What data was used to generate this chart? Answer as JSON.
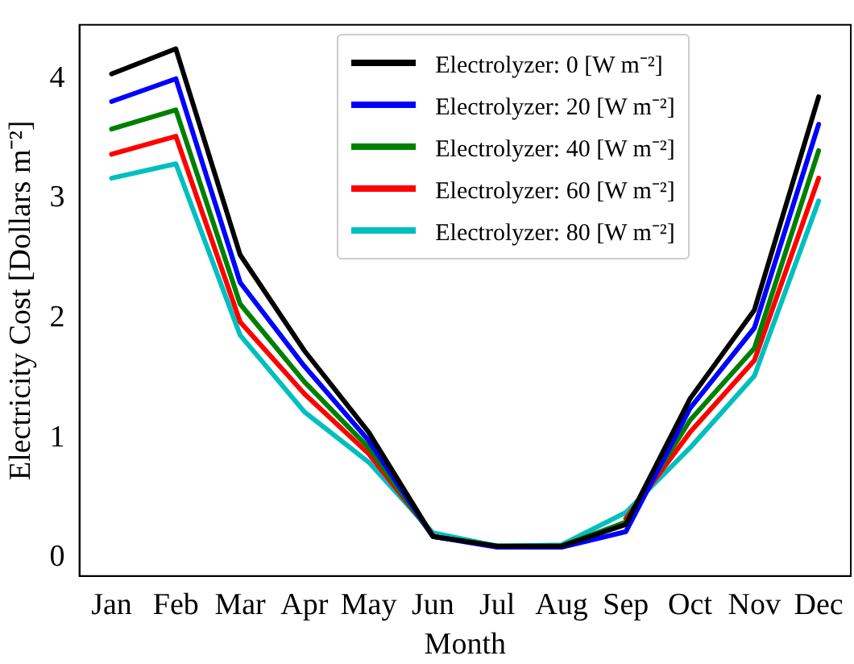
{
  "chart_data": {
    "type": "line",
    "xlabel": "Month",
    "ylabel": "Electricity Cost [Dollars m⁻²]",
    "categories": [
      "Jan",
      "Feb",
      "Mar",
      "Apr",
      "May",
      "Jun",
      "Jul",
      "Aug",
      "Sep",
      "Oct",
      "Nov",
      "Dec"
    ],
    "series": [
      {
        "name": "Electrolyzer: 0 [W m⁻²]",
        "color": "#000000",
        "values": [
          4.04,
          4.25,
          2.53,
          1.73,
          1.05,
          0.18,
          0.1,
          0.1,
          0.28,
          1.33,
          2.07,
          3.85
        ]
      },
      {
        "name": "Electrolyzer: 20 [W m⁻²]",
        "color": "#0000ff",
        "values": [
          3.81,
          4.0,
          2.3,
          1.6,
          0.98,
          0.18,
          0.09,
          0.09,
          0.22,
          1.25,
          1.92,
          3.62
        ]
      },
      {
        "name": "Electrolyzer: 40 [W m⁻²]",
        "color": "#008000",
        "values": [
          3.58,
          3.74,
          2.12,
          1.47,
          0.92,
          0.18,
          0.1,
          0.1,
          0.3,
          1.15,
          1.75,
          3.4
        ]
      },
      {
        "name": "Electrolyzer: 60 [W m⁻²]",
        "color": "#ff0000",
        "values": [
          3.37,
          3.52,
          1.97,
          1.37,
          0.87,
          0.19,
          null,
          null,
          0.33,
          1.05,
          1.65,
          3.17
        ]
      },
      {
        "name": "Electrolyzer: 80 [W m⁻²]",
        "color": "#00bfbf",
        "values": [
          3.17,
          3.29,
          1.86,
          1.22,
          0.8,
          0.21,
          0.1,
          0.11,
          0.38,
          0.92,
          1.52,
          2.98
        ]
      }
    ],
    "ylim": [
      -0.15,
      4.45
    ],
    "yticks": [
      0,
      1,
      2,
      3,
      4
    ],
    "legend": "top",
    "grid": false,
    "marker": "none",
    "line_style": "solid"
  }
}
